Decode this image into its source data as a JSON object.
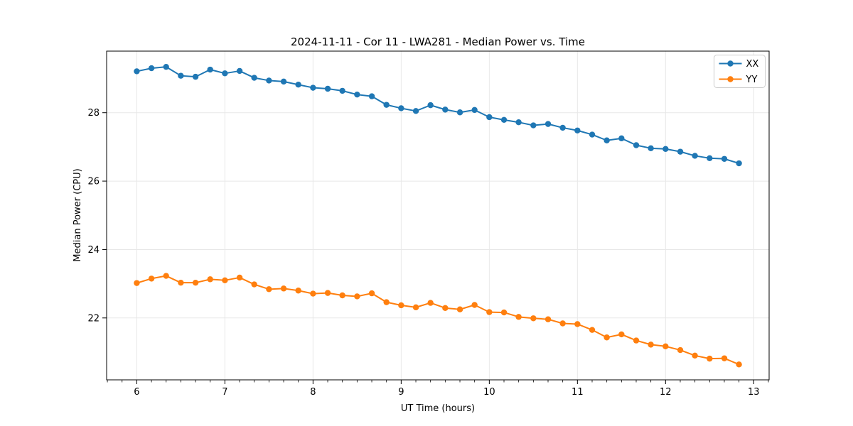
{
  "figure": {
    "title": "2024-11-11 - Cor 11 - LWA281 - Median Power vs. Time",
    "xlabel": "UT Time (hours)",
    "ylabel": "Median Power (CPU)"
  },
  "legend": {
    "position": "upper right",
    "entries": [
      {
        "label": "XX",
        "color": "#1f77b4"
      },
      {
        "label": "YY",
        "color": "#ff7f0e"
      }
    ]
  },
  "chart_data": {
    "type": "line",
    "title": "2024-11-11 - Cor 11 - LWA281 - Median Power vs. Time",
    "xlabel": "UT Time (hours)",
    "ylabel": "Median Power (CPU)",
    "xlim": [
      5.658,
      13.175
    ],
    "ylim": [
      20.19,
      29.8
    ],
    "x_ticks": [
      6,
      7,
      8,
      9,
      10,
      11,
      12,
      13
    ],
    "y_ticks": [
      22,
      24,
      26,
      28
    ],
    "x_minor_step": 0.1667,
    "grid": true,
    "grid_color": "#e8e8e8",
    "frame_color": "#000000",
    "background_color": "#ffffff",
    "legend_position": "upper right",
    "marker": "circle",
    "marker_radius": 4.2,
    "line_width": 2,
    "x": [
      6.0,
      6.167,
      6.333,
      6.5,
      6.667,
      6.833,
      7.0,
      7.167,
      7.333,
      7.5,
      7.667,
      7.833,
      8.0,
      8.167,
      8.333,
      8.5,
      8.667,
      8.833,
      9.0,
      9.167,
      9.333,
      9.5,
      9.667,
      9.833,
      10.0,
      10.167,
      10.333,
      10.5,
      10.667,
      10.833,
      11.0,
      11.167,
      11.333,
      11.5,
      11.667,
      11.833,
      12.0,
      12.167,
      12.333,
      12.5,
      12.667,
      12.833
    ],
    "series": [
      {
        "name": "XX",
        "color": "#1f77b4",
        "values": [
          29.21,
          29.3,
          29.34,
          29.08,
          29.05,
          29.26,
          29.15,
          29.22,
          29.02,
          28.94,
          28.91,
          28.82,
          28.73,
          28.7,
          28.64,
          28.53,
          28.48,
          28.23,
          28.13,
          28.05,
          28.22,
          28.09,
          28.01,
          28.08,
          27.87,
          27.79,
          27.72,
          27.63,
          27.67,
          27.56,
          27.48,
          27.36,
          27.19,
          27.25,
          27.05,
          26.96,
          26.94,
          26.86,
          26.74,
          26.67,
          26.65,
          26.52
        ]
      },
      {
        "name": "YY",
        "color": "#ff7f0e",
        "values": [
          23.02,
          23.15,
          23.23,
          23.03,
          23.03,
          23.13,
          23.1,
          23.18,
          22.98,
          22.84,
          22.86,
          22.8,
          22.71,
          22.73,
          22.66,
          22.63,
          22.72,
          22.46,
          22.37,
          22.31,
          22.44,
          22.29,
          22.25,
          22.38,
          22.17,
          22.16,
          22.03,
          21.99,
          21.96,
          21.84,
          21.82,
          21.65,
          21.43,
          21.52,
          21.34,
          21.22,
          21.17,
          21.06,
          20.9,
          20.81,
          20.82,
          20.64
        ]
      }
    ]
  }
}
